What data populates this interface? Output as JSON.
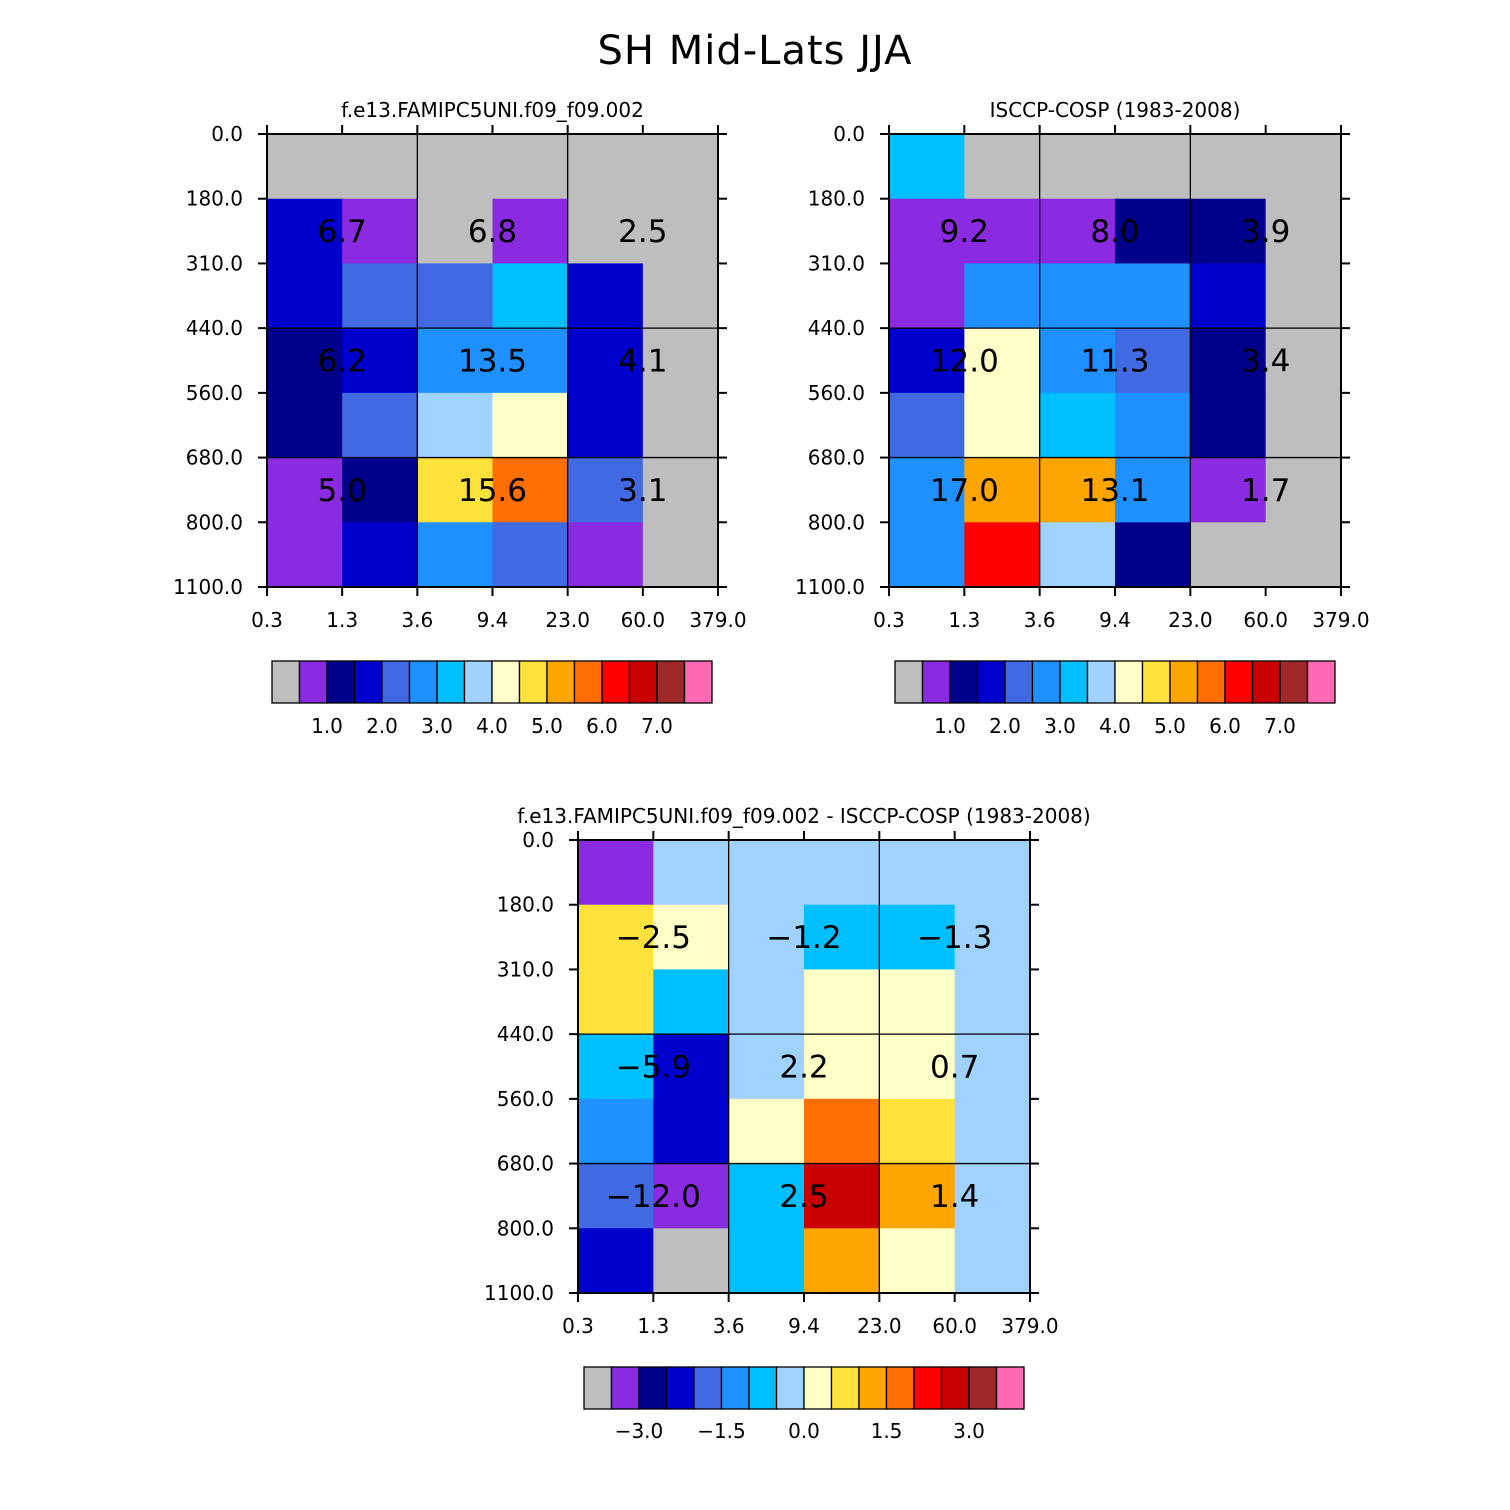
{
  "title": "SH Mid-Lats JJA",
  "chart_data": [
    {
      "id": "model",
      "type": "heatmap",
      "title": "f.e13.FAMIPC5UNI.f09_f09.002",
      "xlabel": "",
      "ylabel": "",
      "x_ticks": [
        "0.3",
        "1.3",
        "3.6",
        "9.4",
        "23.0",
        "60.0",
        "379.0"
      ],
      "y_ticks": [
        "0.0",
        "180.0",
        "310.0",
        "440.0",
        "560.0",
        "680.0",
        "800.0",
        "1100.0"
      ],
      "cells": [
        [
          0,
          0,
          0,
          0,
          0,
          0
        ],
        [
          3,
          1,
          0,
          1,
          0,
          0
        ],
        [
          3,
          4,
          4,
          6,
          3,
          0
        ],
        [
          2,
          3,
          5,
          5,
          3,
          0
        ],
        [
          2,
          4,
          7,
          8,
          3,
          0
        ],
        [
          1,
          2,
          9,
          11,
          4,
          0
        ],
        [
          1,
          3,
          5,
          4,
          1,
          0
        ]
      ],
      "block_labels": [
        [
          "6.7",
          "6.8",
          "2.5"
        ],
        [
          "6.2",
          "13.5",
          "4.1"
        ],
        [
          "5.0",
          "15.6",
          "3.1"
        ]
      ],
      "colorbar_labels": [
        "1.0",
        "2.0",
        "3.0",
        "4.0",
        "5.0",
        "6.0",
        "7.0"
      ]
    },
    {
      "id": "obs",
      "type": "heatmap",
      "title": "ISCCP-COSP (1983-2008)",
      "xlabel": "",
      "ylabel": "",
      "x_ticks": [
        "0.3",
        "1.3",
        "3.6",
        "9.4",
        "23.0",
        "60.0",
        "379.0"
      ],
      "y_ticks": [
        "0.0",
        "180.0",
        "310.0",
        "440.0",
        "560.0",
        "680.0",
        "800.0",
        "1100.0"
      ],
      "cells": [
        [
          6,
          0,
          0,
          0,
          0,
          0
        ],
        [
          1,
          1,
          1,
          2,
          2,
          0
        ],
        [
          1,
          5,
          5,
          5,
          3,
          0
        ],
        [
          3,
          8,
          5,
          4,
          2,
          0
        ],
        [
          4,
          8,
          6,
          5,
          2,
          0
        ],
        [
          5,
          10,
          10,
          5,
          1,
          0
        ],
        [
          5,
          12,
          7,
          2,
          0,
          0
        ]
      ],
      "block_labels": [
        [
          "9.2",
          "8.0",
          "3.9"
        ],
        [
          "12.0",
          "11.3",
          "3.4"
        ],
        [
          "17.0",
          "13.1",
          "1.7"
        ]
      ],
      "colorbar_labels": [
        "1.0",
        "2.0",
        "3.0",
        "4.0",
        "5.0",
        "6.0",
        "7.0"
      ]
    },
    {
      "id": "diff",
      "type": "heatmap",
      "title": "f.e13.FAMIPC5UNI.f09_f09.002 - ISCCP-COSP (1983-2008)",
      "xlabel": "",
      "ylabel": "",
      "x_ticks": [
        "0.3",
        "1.3",
        "3.6",
        "9.4",
        "23.0",
        "60.0",
        "379.0"
      ],
      "y_ticks": [
        "0.0",
        "180.0",
        "310.0",
        "440.0",
        "560.0",
        "680.0",
        "800.0",
        "1100.0"
      ],
      "cells": [
        [
          1,
          7,
          7,
          7,
          7,
          7
        ],
        [
          9,
          8,
          7,
          6,
          6,
          7
        ],
        [
          9,
          6,
          7,
          8,
          8,
          7
        ],
        [
          6,
          3,
          7,
          8,
          8,
          7
        ],
        [
          5,
          3,
          8,
          11,
          9,
          7
        ],
        [
          4,
          1,
          6,
          13,
          10,
          7
        ],
        [
          3,
          0,
          6,
          10,
          8,
          7
        ]
      ],
      "block_labels": [
        [
          "-2.5",
          "-1.2",
          "-1.3"
        ],
        [
          "-5.9",
          "2.2",
          "0.7"
        ],
        [
          "-12.0",
          "2.5",
          "1.4"
        ]
      ],
      "colorbar_labels": [
        "-3.0",
        "-1.5",
        "0.0",
        "1.5",
        "3.0"
      ]
    }
  ],
  "palette": [
    "#bebebe",
    "#8a2be2",
    "#00008b",
    "#0000cd",
    "#4169e1",
    "#1e90ff",
    "#00bfff",
    "#a0d2ff",
    "#ffffc8",
    "#ffe13c",
    "#ffa500",
    "#ff6e00",
    "#ff0000",
    "#c80000",
    "#a02828",
    "#ff69b4"
  ]
}
